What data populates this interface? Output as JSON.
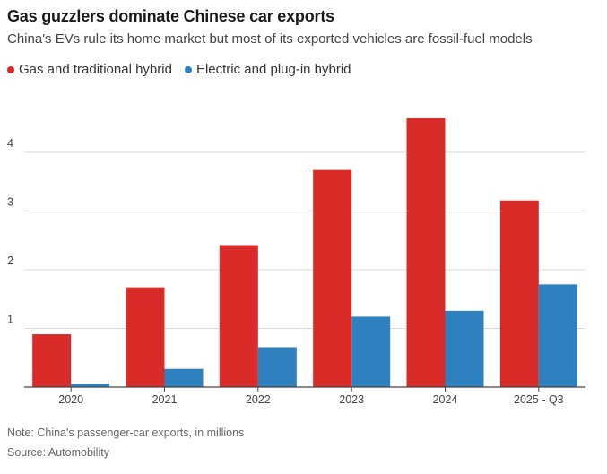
{
  "title": "Gas guzzlers dominate Chinese car exports",
  "subtitle": "China's EVs rule its home market but most of its exported vehicles are fossil-fuel models",
  "note": "Note: China's passenger-car exports, in millions",
  "source": "Source: Automobility",
  "colors": {
    "gas": "#d92b27",
    "electric": "#2f80bf",
    "grid": "#d9d9d9",
    "axis": "#444444"
  },
  "chart_data": {
    "type": "bar",
    "categories": [
      "2020",
      "2021",
      "2022",
      "2023",
      "2024",
      "2025 - Q3"
    ],
    "series": [
      {
        "name": "Gas and traditional hybrid",
        "values": [
          0.9,
          1.7,
          2.42,
          3.7,
          4.58,
          3.18
        ]
      },
      {
        "name": "Electric and plug-in hybrid",
        "values": [
          0.06,
          0.31,
          0.68,
          1.2,
          1.3,
          1.75
        ]
      }
    ],
    "yticks": [
      "1",
      "2",
      "3",
      "4"
    ],
    "ylim": [
      0,
      5
    ],
    "grid": true,
    "legend_position": "top-left"
  }
}
